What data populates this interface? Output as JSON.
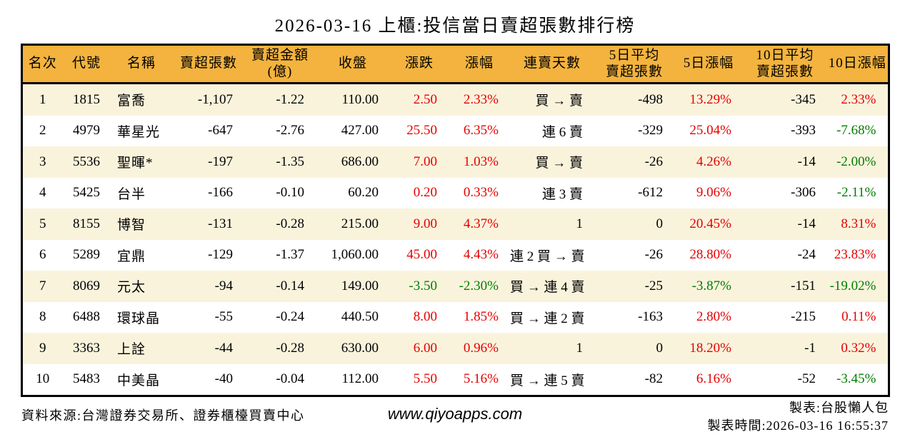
{
  "title": "2026-03-16 上櫃:投信當日賣超張數排行榜",
  "colors": {
    "red": "#e60000",
    "green": "#007e00",
    "header_bg": "#f3b33e",
    "stripe_bg": "#faf3dc",
    "border": "#000000"
  },
  "table": {
    "columns": [
      {
        "key": "rank",
        "label": "名次"
      },
      {
        "key": "code",
        "label": "代號"
      },
      {
        "key": "name",
        "label": "名稱"
      },
      {
        "key": "sell_shares",
        "label": "賣超張數"
      },
      {
        "key": "sell_amount",
        "label": "賣超金額\n(億)"
      },
      {
        "key": "close",
        "label": "收盤"
      },
      {
        "key": "change",
        "label": "漲跌"
      },
      {
        "key": "change_pct",
        "label": "漲幅"
      },
      {
        "key": "streak",
        "label": "連賣天數"
      },
      {
        "key": "avg5_sell",
        "label": "5日平均\n賣超張數"
      },
      {
        "key": "pct5",
        "label": "5日漲幅"
      },
      {
        "key": "avg10_sell",
        "label": "10日平均\n賣超張數"
      },
      {
        "key": "pct10",
        "label": "10日漲幅"
      }
    ],
    "rows": [
      {
        "cells": [
          [
            "1",
            ""
          ],
          [
            "1815",
            ""
          ],
          [
            "富喬",
            ""
          ],
          [
            "-1,107",
            ""
          ],
          [
            "-1.22",
            ""
          ],
          [
            "110.00",
            ""
          ],
          [
            "2.50",
            "red"
          ],
          [
            "2.33%",
            "red"
          ],
          [
            "買 → 賣",
            ""
          ],
          [
            "-498",
            ""
          ],
          [
            "13.29%",
            "red"
          ],
          [
            "-345",
            ""
          ],
          [
            "2.33%",
            "red"
          ]
        ]
      },
      {
        "cells": [
          [
            "2",
            ""
          ],
          [
            "4979",
            ""
          ],
          [
            "華星光",
            ""
          ],
          [
            "-647",
            ""
          ],
          [
            "-2.76",
            ""
          ],
          [
            "427.00",
            ""
          ],
          [
            "25.50",
            "red"
          ],
          [
            "6.35%",
            "red"
          ],
          [
            "連 6 賣",
            ""
          ],
          [
            "-329",
            ""
          ],
          [
            "25.04%",
            "red"
          ],
          [
            "-393",
            ""
          ],
          [
            "-7.68%",
            "green"
          ]
        ]
      },
      {
        "cells": [
          [
            "3",
            ""
          ],
          [
            "5536",
            ""
          ],
          [
            "聖暉*",
            ""
          ],
          [
            "-197",
            ""
          ],
          [
            "-1.35",
            ""
          ],
          [
            "686.00",
            ""
          ],
          [
            "7.00",
            "red"
          ],
          [
            "1.03%",
            "red"
          ],
          [
            "買 → 賣",
            ""
          ],
          [
            "-26",
            ""
          ],
          [
            "4.26%",
            "red"
          ],
          [
            "-14",
            ""
          ],
          [
            "-2.00%",
            "green"
          ]
        ]
      },
      {
        "cells": [
          [
            "4",
            ""
          ],
          [
            "5425",
            ""
          ],
          [
            "台半",
            ""
          ],
          [
            "-166",
            ""
          ],
          [
            "-0.10",
            ""
          ],
          [
            "60.20",
            ""
          ],
          [
            "0.20",
            "red"
          ],
          [
            "0.33%",
            "red"
          ],
          [
            "連 3 賣",
            ""
          ],
          [
            "-612",
            ""
          ],
          [
            "9.06%",
            "red"
          ],
          [
            "-306",
            ""
          ],
          [
            "-2.11%",
            "green"
          ]
        ]
      },
      {
        "cells": [
          [
            "5",
            ""
          ],
          [
            "8155",
            ""
          ],
          [
            "博智",
            ""
          ],
          [
            "-131",
            ""
          ],
          [
            "-0.28",
            ""
          ],
          [
            "215.00",
            ""
          ],
          [
            "9.00",
            "red"
          ],
          [
            "4.37%",
            "red"
          ],
          [
            "1",
            ""
          ],
          [
            "0",
            ""
          ],
          [
            "20.45%",
            "red"
          ],
          [
            "-14",
            ""
          ],
          [
            "8.31%",
            "red"
          ]
        ]
      },
      {
        "cells": [
          [
            "6",
            ""
          ],
          [
            "5289",
            ""
          ],
          [
            "宜鼎",
            ""
          ],
          [
            "-129",
            ""
          ],
          [
            "-1.37",
            ""
          ],
          [
            "1,060.00",
            ""
          ],
          [
            "45.00",
            "red"
          ],
          [
            "4.43%",
            "red"
          ],
          [
            "連 2 買 → 賣",
            ""
          ],
          [
            "-26",
            ""
          ],
          [
            "28.80%",
            "red"
          ],
          [
            "-24",
            ""
          ],
          [
            "23.83%",
            "red"
          ]
        ]
      },
      {
        "cells": [
          [
            "7",
            ""
          ],
          [
            "8069",
            ""
          ],
          [
            "元太",
            ""
          ],
          [
            "-94",
            ""
          ],
          [
            "-0.14",
            ""
          ],
          [
            "149.00",
            ""
          ],
          [
            "-3.50",
            "green"
          ],
          [
            "-2.30%",
            "green"
          ],
          [
            "買 → 連 4 賣",
            ""
          ],
          [
            "-25",
            ""
          ],
          [
            "-3.87%",
            "green"
          ],
          [
            "-151",
            ""
          ],
          [
            "-19.02%",
            "green"
          ]
        ]
      },
      {
        "cells": [
          [
            "8",
            ""
          ],
          [
            "6488",
            ""
          ],
          [
            "環球晶",
            ""
          ],
          [
            "-55",
            ""
          ],
          [
            "-0.24",
            ""
          ],
          [
            "440.50",
            ""
          ],
          [
            "8.00",
            "red"
          ],
          [
            "1.85%",
            "red"
          ],
          [
            "買 → 連 2 賣",
            ""
          ],
          [
            "-163",
            ""
          ],
          [
            "2.80%",
            "red"
          ],
          [
            "-215",
            ""
          ],
          [
            "0.11%",
            "red"
          ]
        ]
      },
      {
        "cells": [
          [
            "9",
            ""
          ],
          [
            "3363",
            ""
          ],
          [
            "上詮",
            ""
          ],
          [
            "-44",
            ""
          ],
          [
            "-0.28",
            ""
          ],
          [
            "630.00",
            ""
          ],
          [
            "6.00",
            "red"
          ],
          [
            "0.96%",
            "red"
          ],
          [
            "1",
            ""
          ],
          [
            "0",
            ""
          ],
          [
            "18.20%",
            "red"
          ],
          [
            "-1",
            ""
          ],
          [
            "0.32%",
            "red"
          ]
        ]
      },
      {
        "cells": [
          [
            "10",
            ""
          ],
          [
            "5483",
            ""
          ],
          [
            "中美晶",
            ""
          ],
          [
            "-40",
            ""
          ],
          [
            "-0.04",
            ""
          ],
          [
            "112.00",
            ""
          ],
          [
            "5.50",
            "red"
          ],
          [
            "5.16%",
            "red"
          ],
          [
            "買 → 連 5 賣",
            ""
          ],
          [
            "-82",
            ""
          ],
          [
            "6.16%",
            "red"
          ],
          [
            "-52",
            ""
          ],
          [
            "-3.45%",
            "green"
          ]
        ]
      }
    ]
  },
  "footer": {
    "source": "資料來源:台灣證券交易所、證券櫃檯買賣中心",
    "website": "www.qiyoapps.com",
    "maker": "製表:台股懶人包",
    "made_time": "製表時間:2026-03-16 16:55:37"
  }
}
